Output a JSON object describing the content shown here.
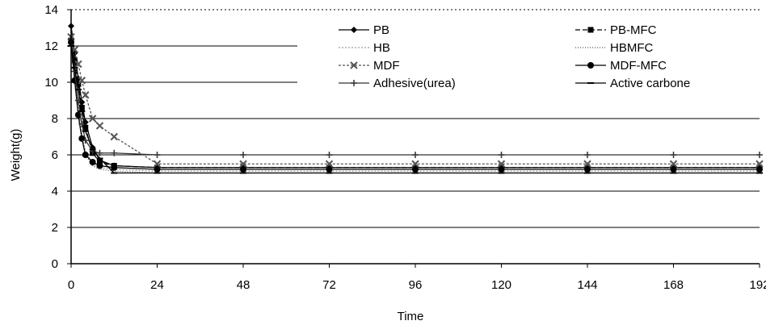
{
  "chart_data": {
    "type": "line",
    "title": "",
    "xlabel": "Time",
    "ylabel": "Weight(g)",
    "xlim": [
      0,
      192
    ],
    "ylim": [
      0,
      14
    ],
    "xticks": [
      0,
      24,
      48,
      72,
      96,
      120,
      144,
      168,
      192
    ],
    "yticks": [
      0,
      2,
      4,
      6,
      8,
      10,
      12,
      14
    ],
    "grid": "horizontal",
    "legend_position": "top-right",
    "x": [
      0,
      1,
      2,
      3,
      4,
      6,
      8,
      12,
      24,
      48,
      72,
      96,
      120,
      144,
      168,
      192
    ],
    "series": [
      {
        "name": "PB",
        "marker": "diamond",
        "color": "#000000",
        "dash": "",
        "values": [
          13.1,
          11.6,
          10.2,
          8.9,
          7.8,
          6.4,
          5.7,
          5.4,
          5.3,
          5.3,
          5.3,
          5.3,
          5.3,
          5.3,
          5.3,
          5.3
        ]
      },
      {
        "name": "PB-MFC",
        "marker": "square",
        "color": "#000000",
        "dash": "6,3",
        "values": [
          12.3,
          11.2,
          9.9,
          8.6,
          7.5,
          6.1,
          5.6,
          5.4,
          5.3,
          5.3,
          5.3,
          5.3,
          5.3,
          5.3,
          5.3,
          5.3
        ]
      },
      {
        "name": "HB",
        "marker": "none",
        "color": "#9a9a9a",
        "dash": "2,2",
        "values": [
          12.0,
          10.3,
          8.6,
          7.2,
          6.2,
          5.5,
          5.3,
          5.2,
          5.1,
          5.1,
          5.1,
          5.1,
          5.1,
          5.1,
          5.1,
          5.1
        ]
      },
      {
        "name": "HBMFC",
        "marker": "none",
        "color": "#555555",
        "dash": "1,2",
        "values": [
          11.8,
          10.0,
          8.3,
          7.0,
          6.0,
          5.4,
          5.2,
          5.1,
          5.0,
          5.0,
          5.0,
          5.0,
          5.0,
          5.0,
          5.0,
          5.0
        ]
      },
      {
        "name": "MDF",
        "marker": "x",
        "color": "#555555",
        "dash": "3,2",
        "values": [
          12.5,
          11.8,
          11.0,
          10.1,
          9.3,
          8.0,
          7.6,
          7.0,
          5.5,
          5.5,
          5.5,
          5.5,
          5.5,
          5.5,
          5.5,
          5.5
        ]
      },
      {
        "name": "MDF-MFC",
        "marker": "circle",
        "color": "#000000",
        "dash": "",
        "values": [
          12.2,
          10.1,
          8.2,
          6.9,
          6.0,
          5.6,
          5.4,
          5.3,
          5.2,
          5.2,
          5.2,
          5.2,
          5.2,
          5.2,
          5.2,
          5.2
        ]
      },
      {
        "name": "Adhesive(urea)",
        "marker": "plus",
        "color": "#333333",
        "dash": "",
        "values": [
          12.4,
          10.6,
          9.0,
          7.7,
          6.8,
          6.2,
          6.1,
          6.1,
          6.0,
          6.0,
          6.0,
          6.0,
          6.0,
          6.0,
          6.0,
          6.0
        ]
      },
      {
        "name": "Active carbone",
        "marker": "dash",
        "color": "#000000",
        "dash": "",
        "values": [
          12.0,
          10.8,
          9.6,
          8.4,
          7.3,
          6.3,
          5.8,
          5.0,
          5.0,
          5.0,
          5.0,
          5.0,
          5.0,
          5.0,
          5.0,
          5.0
        ]
      }
    ]
  }
}
